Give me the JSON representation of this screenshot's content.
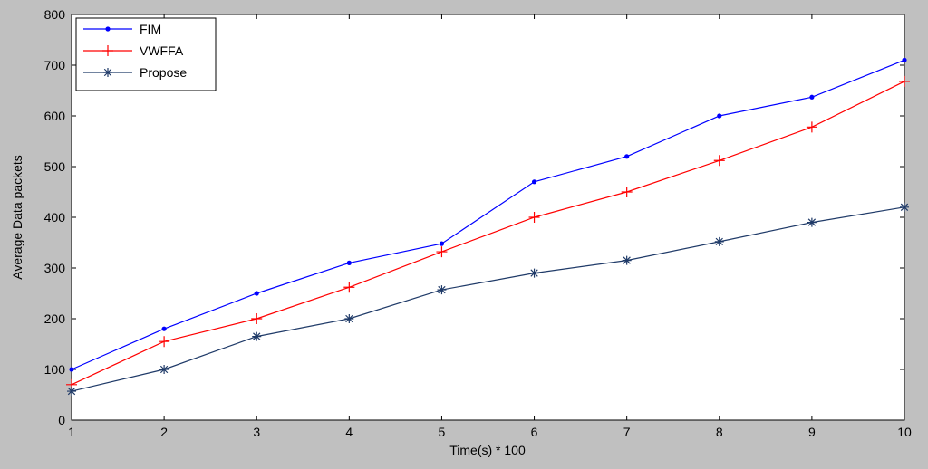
{
  "chart_data": {
    "type": "line",
    "title": "",
    "xlabel": "Time(s) * 100",
    "ylabel": "Average Data packets",
    "xlim": [
      1,
      10
    ],
    "ylim": [
      0,
      800
    ],
    "x": [
      1,
      2,
      3,
      4,
      5,
      6,
      7,
      8,
      9,
      10
    ],
    "xticks": [
      "1",
      "2",
      "3",
      "4",
      "5",
      "6",
      "7",
      "8",
      "9",
      "10"
    ],
    "yticks": [
      "0",
      "100",
      "200",
      "300",
      "400",
      "500",
      "600",
      "700",
      "800"
    ],
    "grid": false,
    "legend_position": "top-left",
    "series": [
      {
        "name": "FIM",
        "color": "#0000ff",
        "marker": "dot",
        "values": [
          100,
          180,
          250,
          310,
          348,
          470,
          520,
          600,
          637,
          710
        ]
      },
      {
        "name": "VWFFA",
        "color": "#ff0000",
        "marker": "plus",
        "values": [
          70,
          155,
          200,
          262,
          332,
          400,
          450,
          512,
          578,
          668
        ]
      },
      {
        "name": "Propose",
        "color": "#1f3a68",
        "marker": "star",
        "values": [
          57,
          100,
          165,
          200,
          257,
          290,
          315,
          352,
          390,
          420
        ]
      }
    ]
  }
}
